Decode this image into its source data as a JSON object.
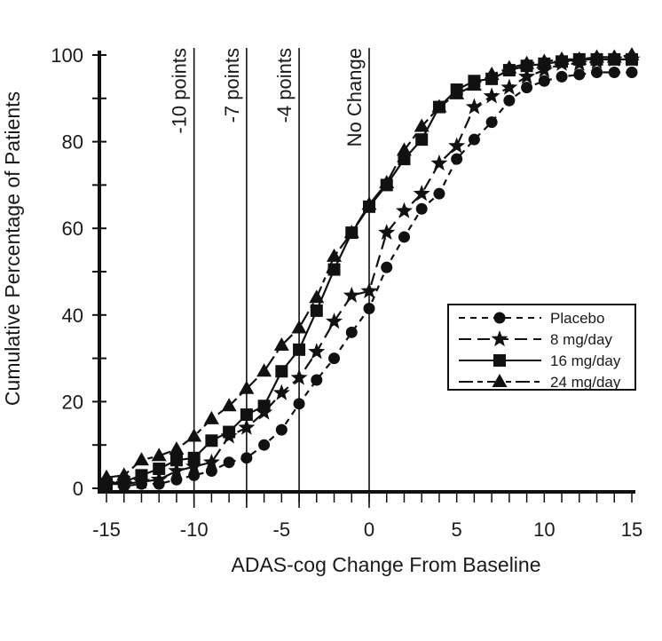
{
  "chart_data": {
    "type": "line",
    "title": "",
    "xlabel": "ADAS-cog Change From Baseline",
    "ylabel": "Cumulative Percentage of Patients",
    "xlim": [
      -15,
      15
    ],
    "ylim": [
      0,
      100
    ],
    "x_ticks": [
      "-15",
      "-10",
      "-5",
      "0",
      "5",
      "10",
      "15"
    ],
    "x_tick_values": [
      -15,
      -10,
      -5,
      0,
      5,
      10,
      15
    ],
    "y_ticks": [
      "0",
      "20",
      "40",
      "60",
      "80",
      "100"
    ],
    "y_tick_values": [
      0,
      20,
      40,
      60,
      80,
      100
    ],
    "grid": false,
    "legend_position": "center-right",
    "reference_lines": [
      {
        "x": -10,
        "label": "-10 points"
      },
      {
        "x": -7,
        "label": "-7 points"
      },
      {
        "x": -4,
        "label": "-4 points"
      },
      {
        "x": 0,
        "label": "No Change"
      }
    ],
    "x": [
      -15,
      -14,
      -13,
      -12,
      -11,
      -10,
      -9,
      -8,
      -7,
      -6,
      -5,
      -4,
      -3,
      -2,
      -1,
      0,
      1,
      2,
      3,
      4,
      5,
      6,
      7,
      8,
      9,
      10,
      11,
      12,
      13,
      14,
      15
    ],
    "series": [
      {
        "name": "Placebo",
        "marker": "circle",
        "dash": "short-dash",
        "values": [
          0.5,
          0.5,
          1,
          1,
          2,
          3,
          4,
          6,
          7,
          10,
          13.5,
          19.5,
          25,
          30,
          36,
          41.5,
          51,
          58,
          64.5,
          68,
          76,
          80.5,
          84.5,
          89.5,
          92.5,
          94,
          95,
          95.5,
          96,
          96,
          96
        ]
      },
      {
        "name": "8 mg/day",
        "marker": "star",
        "dash": "long-dash",
        "values": [
          1,
          1,
          1.5,
          2,
          4,
          5,
          6,
          12,
          14,
          17.5,
          22,
          25.5,
          31.5,
          38.5,
          44.5,
          45.5,
          59,
          64,
          68,
          75,
          79,
          88,
          90.5,
          92.5,
          95,
          96.5,
          98,
          98,
          98.5,
          99,
          99
        ]
      },
      {
        "name": "16 mg/day",
        "marker": "square",
        "dash": "solid",
        "values": [
          1,
          1.5,
          3,
          4.5,
          6.5,
          7,
          11,
          13,
          17,
          19,
          27,
          32,
          41,
          50.5,
          59,
          65,
          70,
          76,
          80.5,
          88,
          92,
          94,
          94.5,
          96.5,
          97.5,
          98,
          98.5,
          99,
          99,
          99,
          99
        ]
      },
      {
        "name": "24 mg/day",
        "marker": "triangle",
        "dash": "long-short-dash",
        "values": [
          2.5,
          3,
          6.5,
          7.5,
          9,
          12,
          16,
          19,
          23,
          27,
          33,
          37,
          44,
          53.5,
          59,
          65.5,
          70.5,
          78,
          83.5,
          88,
          91,
          93,
          95.5,
          97,
          98,
          98.5,
          99,
          99,
          99.5,
          99.5,
          100
        ]
      }
    ]
  }
}
